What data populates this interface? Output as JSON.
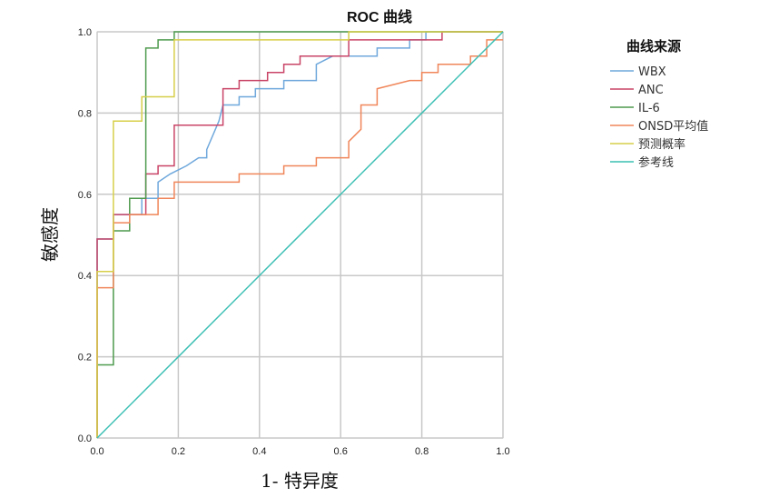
{
  "chart_data": {
    "type": "line",
    "title": "ROC 曲线",
    "xlabel": "1- 特异度",
    "ylabel": "敏感度",
    "xlim": [
      0,
      1
    ],
    "ylim": [
      0,
      1
    ],
    "grid": true,
    "legend_title": "曲线来源",
    "legend_position": "right",
    "x_ticks": [
      "0.0",
      "0.2",
      "0.4",
      "0.6",
      "0.8",
      "1.0"
    ],
    "y_ticks": [
      "0.0",
      "0.2",
      "0.4",
      "0.6",
      "0.8",
      "1.0"
    ],
    "series": [
      {
        "name": "WBX",
        "color": "#6fa8dc",
        "points": [
          [
            0,
            0
          ],
          [
            0,
            0.49
          ],
          [
            0.04,
            0.49
          ],
          [
            0.04,
            0.55
          ],
          [
            0.11,
            0.55
          ],
          [
            0.11,
            0.59
          ],
          [
            0.15,
            0.59
          ],
          [
            0.15,
            0.63
          ],
          [
            0.18,
            0.65
          ],
          [
            0.22,
            0.67
          ],
          [
            0.25,
            0.69
          ],
          [
            0.27,
            0.69
          ],
          [
            0.27,
            0.71
          ],
          [
            0.3,
            0.78
          ],
          [
            0.31,
            0.82
          ],
          [
            0.35,
            0.82
          ],
          [
            0.35,
            0.84
          ],
          [
            0.39,
            0.84
          ],
          [
            0.39,
            0.86
          ],
          [
            0.46,
            0.86
          ],
          [
            0.46,
            0.88
          ],
          [
            0.54,
            0.88
          ],
          [
            0.54,
            0.92
          ],
          [
            0.58,
            0.94
          ],
          [
            0.69,
            0.94
          ],
          [
            0.69,
            0.96
          ],
          [
            0.77,
            0.96
          ],
          [
            0.77,
            0.98
          ],
          [
            0.81,
            0.98
          ],
          [
            0.81,
            1.0
          ],
          [
            1.0,
            1.0
          ]
        ]
      },
      {
        "name": "ANC",
        "color": "#c94467",
        "points": [
          [
            0,
            0
          ],
          [
            0,
            0.49
          ],
          [
            0.04,
            0.49
          ],
          [
            0.04,
            0.55
          ],
          [
            0.12,
            0.55
          ],
          [
            0.12,
            0.65
          ],
          [
            0.15,
            0.65
          ],
          [
            0.15,
            0.67
          ],
          [
            0.19,
            0.67
          ],
          [
            0.19,
            0.77
          ],
          [
            0.31,
            0.77
          ],
          [
            0.31,
            0.82
          ],
          [
            0.31,
            0.86
          ],
          [
            0.35,
            0.86
          ],
          [
            0.35,
            0.88
          ],
          [
            0.42,
            0.88
          ],
          [
            0.42,
            0.9
          ],
          [
            0.46,
            0.9
          ],
          [
            0.46,
            0.92
          ],
          [
            0.5,
            0.92
          ],
          [
            0.5,
            0.94
          ],
          [
            0.62,
            0.94
          ],
          [
            0.62,
            0.98
          ],
          [
            0.85,
            0.98
          ],
          [
            0.85,
            1.0
          ],
          [
            1.0,
            1.0
          ]
        ]
      },
      {
        "name": "IL-6",
        "color": "#4e9a4e",
        "points": [
          [
            0,
            0
          ],
          [
            0,
            0.18
          ],
          [
            0.04,
            0.18
          ],
          [
            0.04,
            0.51
          ],
          [
            0.08,
            0.51
          ],
          [
            0.08,
            0.59
          ],
          [
            0.12,
            0.59
          ],
          [
            0.12,
            0.96
          ],
          [
            0.15,
            0.96
          ],
          [
            0.15,
            0.98
          ],
          [
            0.19,
            0.98
          ],
          [
            0.19,
            1.0
          ],
          [
            1.0,
            1.0
          ]
        ]
      },
      {
        "name": "ONSD平均值",
        "color": "#f0865a",
        "points": [
          [
            0,
            0
          ],
          [
            0,
            0.37
          ],
          [
            0.04,
            0.37
          ],
          [
            0.04,
            0.53
          ],
          [
            0.08,
            0.53
          ],
          [
            0.08,
            0.55
          ],
          [
            0.15,
            0.55
          ],
          [
            0.15,
            0.59
          ],
          [
            0.19,
            0.59
          ],
          [
            0.19,
            0.63
          ],
          [
            0.35,
            0.63
          ],
          [
            0.35,
            0.65
          ],
          [
            0.46,
            0.65
          ],
          [
            0.46,
            0.67
          ],
          [
            0.54,
            0.67
          ],
          [
            0.54,
            0.69
          ],
          [
            0.62,
            0.69
          ],
          [
            0.62,
            0.73
          ],
          [
            0.65,
            0.76
          ],
          [
            0.65,
            0.82
          ],
          [
            0.69,
            0.82
          ],
          [
            0.69,
            0.86
          ],
          [
            0.77,
            0.88
          ],
          [
            0.8,
            0.88
          ],
          [
            0.8,
            0.9
          ],
          [
            0.84,
            0.9
          ],
          [
            0.84,
            0.92
          ],
          [
            0.92,
            0.92
          ],
          [
            0.92,
            0.94
          ],
          [
            0.96,
            0.94
          ],
          [
            0.96,
            0.98
          ],
          [
            1.0,
            0.98
          ]
        ]
      },
      {
        "name": "预测概率",
        "color": "#d7cf4a",
        "points": [
          [
            0,
            0
          ],
          [
            0,
            0.41
          ],
          [
            0.04,
            0.41
          ],
          [
            0.04,
            0.78
          ],
          [
            0.11,
            0.78
          ],
          [
            0.11,
            0.84
          ],
          [
            0.19,
            0.84
          ],
          [
            0.19,
            0.98
          ],
          [
            0.62,
            0.98
          ],
          [
            0.62,
            1.0
          ],
          [
            1.0,
            1.0
          ]
        ]
      },
      {
        "name": "参考线",
        "color": "#3bbfb4",
        "points": [
          [
            0,
            0
          ],
          [
            1,
            1
          ]
        ]
      }
    ]
  }
}
